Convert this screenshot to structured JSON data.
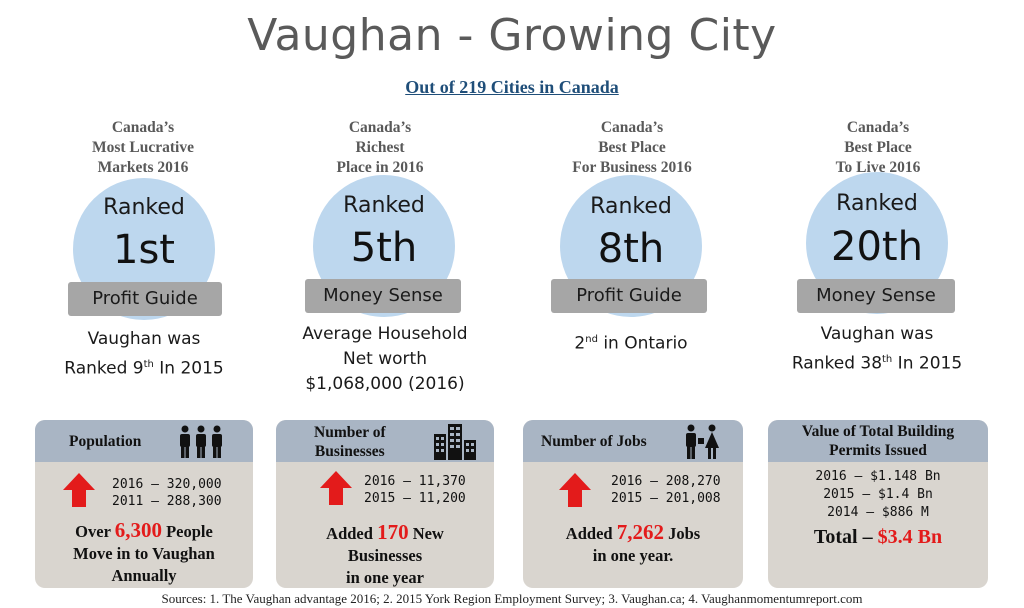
{
  "title": "Vaughan - Growing City",
  "subtitle": "Out of 219 Cities in Canada",
  "rankings": [
    {
      "category": [
        "Canada’s",
        "Most Lucrative",
        "Markets 2016"
      ],
      "ranked_label": "Ranked",
      "rank": "1st",
      "source": "Profit Guide",
      "note": [
        "Vaughan was",
        "Ranked 9",
        "th",
        " In 2015"
      ]
    },
    {
      "category": [
        "Canada’s",
        "Richest",
        "Place in 2016"
      ],
      "ranked_label": "Ranked",
      "rank": "5th",
      "source": "Money Sense",
      "note": [
        "Average Household",
        "Net worth",
        "$1,068,000 (2016)"
      ]
    },
    {
      "category": [
        "Canada’s",
        "Best Place",
        "For Business 2016"
      ],
      "ranked_label": "Ranked",
      "rank": "8th",
      "source": "Profit Guide",
      "note": [
        "2",
        "nd",
        " in Ontario"
      ]
    },
    {
      "category": [
        "Canada’s",
        "Best Place",
        "To Live 2016"
      ],
      "ranked_label": "Ranked",
      "rank": "20th",
      "source": "Money Sense",
      "note": [
        "Vaughan was",
        "Ranked 38",
        "th",
        " In 2015"
      ]
    }
  ],
  "stats": {
    "population": {
      "label": "Population",
      "icon": "people-icon",
      "values": [
        "2016 – 320,000",
        "2011 – 288,300"
      ],
      "summary_pre": "Over ",
      "summary_num": "6,300",
      "summary_post": " People",
      "summary_line2": "Move in to Vaughan",
      "summary_line3": "Annually"
    },
    "businesses": {
      "label": [
        "Number of",
        "Businesses"
      ],
      "icon": "buildings-icon",
      "values": [
        "2016 – 11,370",
        "2015 – 11,200"
      ],
      "summary_pre": "Added ",
      "summary_num": "170",
      "summary_post": " New",
      "summary_line2": "Businesses",
      "summary_line3": "in one year"
    },
    "jobs": {
      "label": "Number of Jobs",
      "icon": "workers-icon",
      "values": [
        "2016 – 208,270",
        "2015 – 201,008"
      ],
      "summary_pre": "Added ",
      "summary_num": "7,262",
      "summary_post": " Jobs",
      "summary_line2": "in one year."
    },
    "permits": {
      "label": [
        "Value of Total Building",
        "Permits Issued"
      ],
      "values": [
        "2016 – $1.148 Bn",
        "2015 – $1.4 Bn",
        "2014 – $886 M"
      ],
      "total_label": "Total – ",
      "total_value": "$3.4 Bn"
    }
  },
  "footer": "Sources: 1. The Vaughan advantage 2016; 2. 2015 York Region Employment Survey; 3. Vaughan.ca; 4. Vaughanmomentumreport.com",
  "colors": {
    "circle": "#bdd7ee",
    "source_bar": "#a6a6a6",
    "box_bg": "#d9d5cf",
    "box_head": "#a9b5c4",
    "accent_red": "#e31b1b",
    "subtitle": "#1f4e79"
  }
}
